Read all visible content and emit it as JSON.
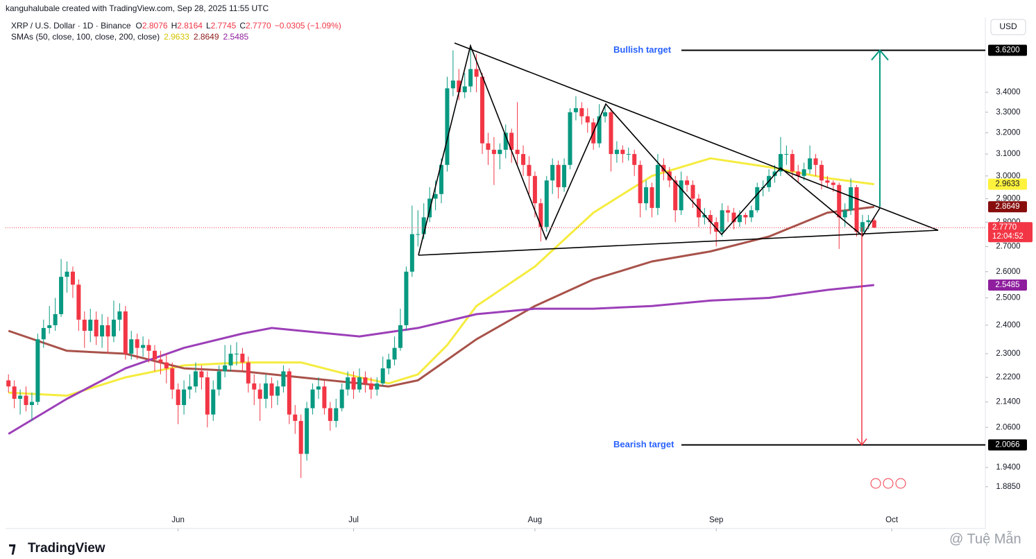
{
  "chart_data": {
    "type": "candlestick",
    "attribution": "kanguhalubale created with TradingView.com, Sep 28, 2025 11:55 UTC",
    "title": "XRP / U.S. Dollar · 1D · Binance",
    "ohlc_letters": [
      "O",
      "H",
      "L",
      "C"
    ],
    "close_label": "2.7770",
    "change_label": "−0.0305 (−1.09%)",
    "countdown": "12:04:52",
    "currency": "USD",
    "indicator_label": "SMAs (50, close, 100, close, 200, close)",
    "logo": "TradingView",
    "watermark": "@ Tuệ Mẫn",
    "up_color": "#089981",
    "down_color": "#f23645",
    "log_scale": true,
    "grid": false,
    "xlim": [
      -0.5,
      167
    ],
    "xticks": [
      {
        "value": 29,
        "label": "Jun"
      },
      {
        "value": 59,
        "label": "Jul"
      },
      {
        "value": 90,
        "label": "Aug"
      },
      {
        "value": 121,
        "label": "Sep"
      },
      {
        "value": 151,
        "label": "Oct"
      }
    ],
    "ylim": [
      1.771,
      3.803
    ],
    "yticks": [
      {
        "value": 3.4,
        "label": "3.4000"
      },
      {
        "value": 3.3,
        "label": "3.3000"
      },
      {
        "value": 3.2,
        "label": "3.2000"
      },
      {
        "value": 3.1,
        "label": "3.1000"
      },
      {
        "value": 3.0,
        "label": "3.0000"
      },
      {
        "value": 2.9,
        "label": "2.9000"
      },
      {
        "value": 2.8,
        "label": "2.8000"
      },
      {
        "value": 2.7,
        "label": "2.7000"
      },
      {
        "value": 2.6,
        "label": "2.6000"
      },
      {
        "value": 2.5,
        "label": "2.5000"
      },
      {
        "value": 2.4,
        "label": "2.4000"
      },
      {
        "value": 2.3,
        "label": "2.3000"
      },
      {
        "value": 2.22,
        "label": "2.2200"
      },
      {
        "value": 2.14,
        "label": "2.1400"
      },
      {
        "value": 2.06,
        "label": "2.0600"
      },
      {
        "value": 1.94,
        "label": "1.9400"
      },
      {
        "value": 1.885,
        "label": "1.8850"
      }
    ],
    "open": [
      2.21,
      2.19,
      2.15,
      2.16,
      2.13,
      2.14,
      2.35,
      2.39,
      2.4,
      2.44,
      2.58,
      2.6,
      2.55,
      2.42,
      2.38,
      2.42,
      2.36,
      2.4,
      2.36,
      2.42,
      2.45,
      2.3,
      2.35,
      2.32,
      2.33,
      2.31,
      2.28,
      2.27,
      2.25,
      2.18,
      2.13,
      2.18,
      2.19,
      2.24,
      2.22,
      2.1,
      2.18,
      2.24,
      2.26,
      2.3,
      2.3,
      2.27,
      2.2,
      2.18,
      2.15,
      2.2,
      2.16,
      2.19,
      2.24,
      2.1,
      2.08,
      1.98,
      2.12,
      2.18,
      2.19,
      2.12,
      2.08,
      2.12,
      2.18,
      2.22,
      2.18,
      2.22,
      2.2,
      2.18,
      2.2,
      2.25,
      2.28,
      2.32,
      2.4,
      2.6,
      2.75,
      2.75,
      2.82,
      2.9,
      2.92,
      3.05,
      3.42,
      3.46,
      3.4,
      3.43,
      3.52,
      3.48,
      3.15,
      3.12,
      3.1,
      3.12,
      3.2,
      3.12,
      3.1,
      3.05,
      3.0,
      2.88,
      2.78,
      2.98,
      3.05,
      2.95,
      3.05,
      3.3,
      3.32,
      3.28,
      3.25,
      3.15,
      3.28,
      3.3,
      3.1,
      3.12,
      3.1,
      3.1,
      3.05,
      2.88,
      2.95,
      2.86,
      3.05,
      3.02,
      2.98,
      2.85,
      2.98,
      2.96,
      2.9,
      2.82,
      2.83,
      2.8,
      2.76,
      2.85,
      2.84,
      2.8,
      2.83,
      2.82,
      2.85,
      2.95,
      2.95,
      3.0,
      3.02,
      3.1,
      3.1,
      3.02,
      3.0,
      3.03,
      3.08,
      3.05,
      2.98,
      2.97,
      2.96,
      2.82,
      2.85,
      2.95,
      2.76,
      2.8,
      2.8076
    ],
    "high": [
      2.23,
      2.21,
      2.18,
      2.19,
      2.17,
      2.37,
      2.42,
      2.47,
      2.5,
      2.65,
      2.64,
      2.62,
      2.57,
      2.45,
      2.46,
      2.45,
      2.44,
      2.43,
      2.49,
      2.48,
      2.47,
      2.38,
      2.37,
      2.36,
      2.35,
      2.33,
      2.31,
      2.3,
      2.27,
      2.2,
      2.21,
      2.23,
      2.27,
      2.26,
      2.24,
      2.21,
      2.26,
      2.33,
      2.33,
      2.34,
      2.32,
      2.29,
      2.23,
      2.2,
      2.23,
      2.22,
      2.21,
      2.26,
      2.25,
      2.13,
      2.1,
      2.14,
      2.2,
      2.22,
      2.21,
      2.14,
      2.15,
      2.2,
      2.24,
      2.24,
      2.25,
      2.24,
      2.22,
      2.22,
      2.29,
      2.3,
      2.36,
      2.46,
      2.62,
      2.87,
      2.85,
      2.88,
      2.95,
      2.98,
      3.08,
      3.48,
      3.62,
      3.52,
      3.5,
      3.65,
      3.6,
      3.5,
      3.2,
      3.18,
      3.15,
      3.24,
      3.22,
      3.35,
      3.14,
      3.09,
      3.02,
      2.9,
      3.0,
      3.08,
      3.07,
      3.08,
      3.32,
      3.38,
      3.35,
      3.32,
      3.27,
      3.34,
      3.33,
      3.32,
      3.16,
      3.14,
      3.13,
      3.12,
      3.07,
      2.98,
      2.97,
      3.1,
      3.08,
      3.04,
      3.0,
      3.02,
      3.0,
      2.98,
      2.92,
      2.86,
      2.85,
      2.82,
      2.88,
      2.87,
      2.86,
      2.85,
      2.84,
      2.87,
      2.97,
      2.98,
      3.03,
      3.05,
      3.18,
      3.14,
      3.12,
      3.05,
      3.06,
      3.14,
      3.1,
      3.07,
      3.0,
      2.98,
      2.97,
      2.88,
      2.99,
      2.96,
      2.83,
      2.83,
      2.8164
    ],
    "low": [
      2.17,
      2.12,
      2.1,
      2.11,
      2.08,
      2.13,
      2.32,
      2.37,
      2.38,
      2.43,
      2.52,
      2.5,
      2.38,
      2.32,
      2.34,
      2.33,
      2.32,
      2.3,
      2.34,
      2.38,
      2.28,
      2.28,
      2.28,
      2.29,
      2.27,
      2.24,
      2.23,
      2.2,
      2.15,
      2.07,
      2.1,
      2.15,
      2.17,
      2.18,
      2.06,
      2.08,
      2.16,
      2.22,
      2.24,
      2.26,
      2.24,
      2.17,
      2.13,
      2.08,
      2.12,
      2.12,
      2.13,
      2.17,
      2.07,
      2.04,
      1.91,
      1.96,
      2.1,
      2.15,
      2.1,
      2.05,
      2.06,
      2.11,
      2.16,
      2.15,
      2.17,
      2.17,
      2.15,
      2.16,
      2.19,
      2.23,
      2.26,
      2.31,
      2.38,
      2.58,
      2.7,
      2.73,
      2.8,
      2.85,
      2.88,
      3.02,
      3.38,
      3.36,
      3.37,
      3.4,
      3.4,
      3.1,
      3.05,
      2.96,
      3.03,
      3.08,
      3.06,
      3.05,
      3.0,
      2.92,
      2.82,
      2.72,
      2.76,
      2.92,
      2.9,
      2.93,
      3.03,
      3.26,
      3.24,
      3.2,
      3.12,
      3.13,
      3.25,
      3.02,
      3.06,
      3.06,
      3.07,
      3.0,
      2.82,
      2.85,
      2.82,
      2.83,
      2.98,
      2.95,
      2.8,
      2.83,
      2.93,
      2.86,
      2.78,
      2.79,
      2.75,
      2.7,
      2.74,
      2.8,
      2.77,
      2.78,
      2.79,
      2.8,
      2.84,
      2.91,
      2.93,
      2.97,
      3.0,
      3.05,
      2.99,
      2.97,
      2.98,
      3.01,
      3.0,
      2.94,
      2.95,
      2.93,
      2.69,
      2.78,
      2.83,
      2.74,
      2.74,
      2.77,
      2.7745
    ],
    "close": [
      2.19,
      2.15,
      2.16,
      2.13,
      2.14,
      2.35,
      2.39,
      2.4,
      2.44,
      2.58,
      2.6,
      2.55,
      2.42,
      2.38,
      2.42,
      2.36,
      2.4,
      2.36,
      2.42,
      2.45,
      2.3,
      2.35,
      2.32,
      2.33,
      2.31,
      2.28,
      2.27,
      2.25,
      2.18,
      2.13,
      2.18,
      2.19,
      2.24,
      2.22,
      2.1,
      2.18,
      2.24,
      2.26,
      2.3,
      2.3,
      2.27,
      2.2,
      2.18,
      2.15,
      2.2,
      2.16,
      2.19,
      2.24,
      2.1,
      2.08,
      1.98,
      2.12,
      2.18,
      2.19,
      2.12,
      2.08,
      2.12,
      2.18,
      2.22,
      2.18,
      2.22,
      2.2,
      2.18,
      2.2,
      2.25,
      2.28,
      2.32,
      2.4,
      2.6,
      2.75,
      2.75,
      2.82,
      2.9,
      2.92,
      3.05,
      3.42,
      3.46,
      3.4,
      3.43,
      3.52,
      3.48,
      3.15,
      3.12,
      3.1,
      3.12,
      3.2,
      3.12,
      3.1,
      3.05,
      3.0,
      2.88,
      2.78,
      2.98,
      3.05,
      2.95,
      3.05,
      3.3,
      3.32,
      3.28,
      3.25,
      3.15,
      3.28,
      3.3,
      3.1,
      3.12,
      3.1,
      3.1,
      3.05,
      2.88,
      2.95,
      2.86,
      3.05,
      3.02,
      2.98,
      2.85,
      2.98,
      2.96,
      2.9,
      2.82,
      2.83,
      2.8,
      2.76,
      2.85,
      2.84,
      2.8,
      2.83,
      2.82,
      2.85,
      2.95,
      2.95,
      3.0,
      3.02,
      3.1,
      3.1,
      3.02,
      3.0,
      3.03,
      3.08,
      3.05,
      2.98,
      2.97,
      2.96,
      2.82,
      2.85,
      2.95,
      2.76,
      2.8,
      2.8076,
      2.777
    ],
    "series": [
      {
        "color": "#f5ec3f",
        "label_color": "#131722",
        "x": [
          0,
          10,
          20,
          30,
          40,
          50,
          60,
          65,
          70,
          75,
          80,
          90,
          100,
          110,
          120,
          130,
          140,
          148
        ],
        "values": [
          2.17,
          2.16,
          2.22,
          2.26,
          2.27,
          2.27,
          2.22,
          2.2,
          2.23,
          2.33,
          2.47,
          2.62,
          2.84,
          3.0,
          3.08,
          3.04,
          2.99,
          2.9633
        ]
      },
      {
        "color": "#a8524a",
        "label_color": "#ffffff",
        "x": [
          0,
          10,
          20,
          30,
          40,
          50,
          60,
          65,
          70,
          80,
          90,
          100,
          110,
          120,
          130,
          140,
          148
        ],
        "values": [
          2.38,
          2.31,
          2.3,
          2.25,
          2.24,
          2.22,
          2.2,
          2.19,
          2.21,
          2.35,
          2.47,
          2.57,
          2.64,
          2.68,
          2.74,
          2.84,
          2.8649
        ]
      },
      {
        "color": "#9c3fb8",
        "label_color": "#ffffff",
        "x": [
          0,
          10,
          20,
          30,
          40,
          45,
          50,
          60,
          70,
          80,
          90,
          100,
          110,
          120,
          130,
          140,
          148
        ],
        "values": [
          2.04,
          2.15,
          2.25,
          2.32,
          2.37,
          2.39,
          2.38,
          2.36,
          2.39,
          2.44,
          2.46,
          2.46,
          2.47,
          2.49,
          2.5,
          2.53,
          2.5485
        ]
      }
    ],
    "series_tag_colors": [
      "#fff23c",
      "#880e0e",
      "#8e1e9e"
    ],
    "series_text_colors": [
      "#d4c400",
      "#8b1a1a",
      "#8e1e9e"
    ],
    "targets": [
      {
        "label": "Bullish target",
        "value": 3.62,
        "value_label": "3.6200"
      },
      {
        "label": "Bearish target",
        "value": 2.0066
      }
    ]
  }
}
